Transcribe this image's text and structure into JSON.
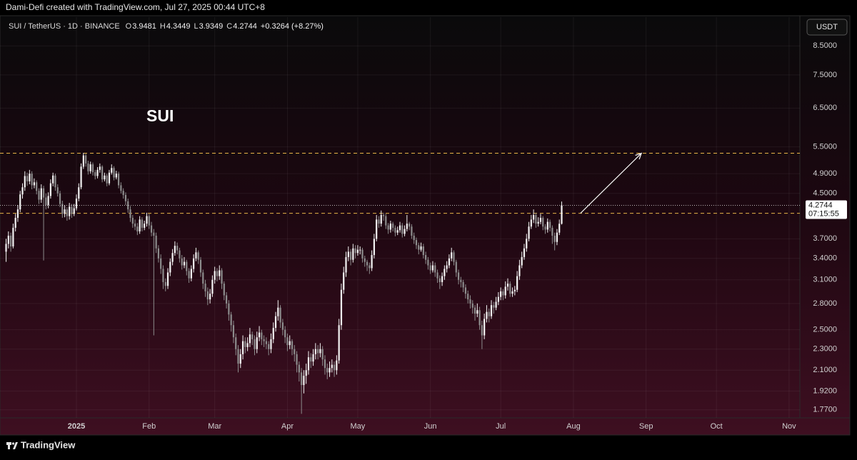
{
  "header": {
    "credit": "Dami-Defi created with TradingView.com, Jul 27, 2025 00:44 UTC+8"
  },
  "footer": {
    "brand": "TradingView"
  },
  "chart_data": {
    "type": "candlestick",
    "symbol": "SUI / TetherUS · 1D · BINANCE",
    "ohlc_labels": [
      "O",
      "H",
      "L",
      "C"
    ],
    "change": "+0.3264 (+8.27%)",
    "currency": "USDT",
    "countdown": "07:15:55",
    "annotation": "SUI",
    "up_color": "#f2f2f2",
    "down_color": "#8c8c8c",
    "level_color": "#e8b548",
    "arrow_color": "#ffffff",
    "log_scale": true,
    "grid": true,
    "ylim": [
      1.71,
      9.62
    ],
    "yticks": [
      {
        "value": 1.77,
        "label": "1.7700"
      },
      {
        "value": 1.92,
        "label": "1.9200"
      },
      {
        "value": 2.1,
        "label": "2.1000"
      },
      {
        "value": 2.3,
        "label": "2.3000"
      },
      {
        "value": 2.5,
        "label": "2.5000"
      },
      {
        "value": 2.8,
        "label": "2.8000"
      },
      {
        "value": 3.1,
        "label": "3.1000"
      },
      {
        "value": 3.4,
        "label": "3.4000"
      },
      {
        "value": 3.7,
        "label": "3.7000"
      },
      {
        "value": 4.5,
        "label": "4.5000"
      },
      {
        "value": 4.9,
        "label": "4.9000"
      },
      {
        "value": 5.5,
        "label": "5.5000"
      },
      {
        "value": 6.5,
        "label": "6.5000"
      },
      {
        "value": 7.5,
        "label": "7.5000"
      },
      {
        "value": 8.5,
        "label": "8.5000"
      }
    ],
    "xlim": [
      -2.6,
      338.6
    ],
    "xticks": [
      {
        "value": 30,
        "label": "2025"
      },
      {
        "value": 61,
        "label": "Feb"
      },
      {
        "value": 89,
        "label": "Mar"
      },
      {
        "value": 120,
        "label": "Apr"
      },
      {
        "value": 150,
        "label": "May"
      },
      {
        "value": 181,
        "label": "Jun"
      },
      {
        "value": 211,
        "label": "Jul"
      },
      {
        "value": 242,
        "label": "Aug"
      },
      {
        "value": 273,
        "label": "Sep"
      },
      {
        "value": 303,
        "label": "Oct"
      },
      {
        "value": 334,
        "label": "Nov"
      }
    ],
    "levels": [
      5.35,
      4.13
    ],
    "arrow": {
      "from": [
        245,
        4.13
      ],
      "to": [
        271,
        5.35
      ]
    },
    "candles": [
      [
        3.5,
        3.7,
        3.35,
        3.62
      ],
      [
        3.62,
        3.82,
        3.55,
        3.75
      ],
      [
        3.75,
        3.8,
        3.5,
        3.58
      ],
      [
        3.58,
        3.95,
        3.55,
        3.88
      ],
      [
        3.88,
        4.12,
        3.82,
        4.05
      ],
      [
        4.05,
        4.28,
        3.98,
        4.2
      ],
      [
        4.2,
        4.55,
        4.15,
        4.48
      ],
      [
        4.48,
        4.7,
        4.4,
        4.62
      ],
      [
        4.62,
        4.95,
        4.55,
        4.85
      ],
      [
        4.85,
        4.92,
        4.65,
        4.74
      ],
      [
        4.74,
        4.98,
        4.68,
        4.9
      ],
      [
        4.9,
        4.95,
        4.58,
        4.66
      ],
      [
        4.66,
        4.8,
        4.6,
        4.72
      ],
      [
        4.72,
        4.76,
        4.48,
        4.55
      ],
      [
        4.55,
        4.6,
        4.3,
        4.38
      ],
      [
        4.38,
        4.68,
        4.32,
        4.6
      ],
      [
        4.6,
        4.65,
        3.37,
        4.42
      ],
      [
        4.42,
        4.5,
        4.2,
        4.28
      ],
      [
        4.28,
        4.52,
        4.22,
        4.45
      ],
      [
        4.45,
        4.78,
        4.4,
        4.7
      ],
      [
        4.7,
        4.92,
        4.64,
        4.86
      ],
      [
        4.86,
        4.9,
        4.55,
        4.62
      ],
      [
        4.62,
        4.68,
        4.44,
        4.5
      ],
      [
        4.5,
        4.55,
        4.24,
        4.3
      ],
      [
        4.3,
        4.36,
        4.05,
        4.12
      ],
      [
        4.12,
        4.28,
        4.06,
        4.2
      ],
      [
        4.2,
        4.24,
        4.0,
        4.08
      ],
      [
        4.08,
        4.32,
        4.02,
        4.25
      ],
      [
        4.25,
        4.3,
        4.05,
        4.12
      ],
      [
        4.12,
        4.3,
        4.08,
        4.22
      ],
      [
        4.22,
        4.48,
        4.18,
        4.4
      ],
      [
        4.4,
        4.7,
        4.35,
        4.62
      ],
      [
        4.62,
        5.12,
        4.58,
        5.05
      ],
      [
        5.05,
        5.36,
        5.0,
        5.3
      ],
      [
        5.3,
        5.34,
        5.05,
        5.12
      ],
      [
        5.12,
        5.18,
        4.88,
        4.95
      ],
      [
        4.95,
        5.16,
        4.9,
        5.1
      ],
      [
        5.1,
        5.14,
        4.86,
        4.93
      ],
      [
        4.93,
        4.98,
        4.78,
        4.85
      ],
      [
        4.85,
        5.04,
        4.8,
        4.98
      ],
      [
        4.98,
        5.12,
        4.92,
        5.05
      ],
      [
        5.05,
        5.08,
        4.72,
        4.78
      ],
      [
        4.78,
        4.92,
        4.74,
        4.86
      ],
      [
        4.86,
        4.9,
        4.64,
        4.7
      ],
      [
        4.7,
        4.98,
        4.66,
        4.92
      ],
      [
        4.92,
        5.1,
        4.88,
        5.02
      ],
      [
        5.02,
        5.06,
        4.76,
        4.82
      ],
      [
        4.82,
        4.96,
        4.78,
        4.9
      ],
      [
        4.9,
        4.94,
        4.6,
        4.66
      ],
      [
        4.66,
        4.72,
        4.5,
        4.55
      ],
      [
        4.55,
        4.6,
        4.4,
        4.47
      ],
      [
        4.47,
        4.52,
        4.28,
        4.35
      ],
      [
        4.35,
        4.4,
        4.14,
        4.2
      ],
      [
        4.2,
        4.26,
        3.98,
        4.05
      ],
      [
        4.05,
        4.1,
        3.88,
        3.95
      ],
      [
        3.95,
        4.02,
        3.84,
        3.9
      ],
      [
        3.9,
        3.96,
        3.76,
        3.82
      ],
      [
        3.82,
        4.08,
        3.78,
        4.02
      ],
      [
        4.02,
        4.06,
        3.82,
        3.88
      ],
      [
        3.88,
        4.0,
        3.84,
        3.95
      ],
      [
        3.95,
        4.14,
        3.9,
        4.08
      ],
      [
        4.08,
        4.12,
        3.86,
        3.92
      ],
      [
        3.92,
        3.98,
        3.74,
        3.8
      ],
      [
        3.8,
        3.86,
        2.44,
        3.75
      ],
      [
        3.75,
        3.8,
        3.48,
        3.55
      ],
      [
        3.55,
        3.6,
        3.34,
        3.4
      ],
      [
        3.4,
        3.46,
        3.18,
        3.25
      ],
      [
        3.25,
        3.3,
        2.98,
        3.07
      ],
      [
        3.07,
        3.12,
        2.95,
        3.02
      ],
      [
        3.02,
        3.26,
        2.98,
        3.2
      ],
      [
        3.2,
        3.4,
        3.15,
        3.35
      ],
      [
        3.35,
        3.54,
        3.3,
        3.48
      ],
      [
        3.48,
        3.66,
        3.44,
        3.59
      ],
      [
        3.59,
        3.64,
        3.46,
        3.52
      ],
      [
        3.52,
        3.56,
        3.34,
        3.4
      ],
      [
        3.4,
        3.45,
        3.24,
        3.3
      ],
      [
        3.3,
        3.42,
        3.26,
        3.35
      ],
      [
        3.35,
        3.38,
        3.16,
        3.22
      ],
      [
        3.22,
        3.26,
        3.06,
        3.12
      ],
      [
        3.12,
        3.3,
        3.08,
        3.25
      ],
      [
        3.25,
        3.46,
        3.2,
        3.4
      ],
      [
        3.4,
        3.56,
        3.36,
        3.49
      ],
      [
        3.49,
        3.52,
        3.32,
        3.38
      ],
      [
        3.38,
        3.42,
        3.14,
        3.2
      ],
      [
        3.2,
        3.24,
        2.98,
        3.05
      ],
      [
        3.05,
        3.1,
        2.88,
        2.95
      ],
      [
        2.95,
        3.0,
        2.78,
        2.85
      ],
      [
        2.85,
        2.98,
        2.8,
        2.92
      ],
      [
        2.92,
        3.16,
        2.88,
        3.1
      ],
      [
        3.1,
        3.28,
        3.05,
        3.22
      ],
      [
        3.22,
        3.26,
        3.08,
        3.15
      ],
      [
        3.15,
        3.3,
        3.1,
        3.23
      ],
      [
        3.23,
        3.26,
        2.98,
        3.05
      ],
      [
        3.05,
        3.08,
        2.84,
        2.9
      ],
      [
        2.9,
        2.94,
        2.74,
        2.8
      ],
      [
        2.8,
        2.84,
        2.6,
        2.67
      ],
      [
        2.67,
        2.7,
        2.48,
        2.55
      ],
      [
        2.55,
        2.6,
        2.36,
        2.42
      ],
      [
        2.42,
        2.46,
        2.24,
        2.3
      ],
      [
        2.3,
        2.34,
        2.08,
        2.16
      ],
      [
        2.16,
        2.3,
        2.12,
        2.25
      ],
      [
        2.25,
        2.44,
        2.2,
        2.38
      ],
      [
        2.38,
        2.42,
        2.26,
        2.32
      ],
      [
        2.32,
        2.42,
        2.28,
        2.36
      ],
      [
        2.36,
        2.52,
        2.32,
        2.45
      ],
      [
        2.45,
        2.48,
        2.34,
        2.4
      ],
      [
        2.4,
        2.44,
        2.24,
        2.3
      ],
      [
        2.3,
        2.48,
        2.26,
        2.42
      ],
      [
        2.42,
        2.54,
        2.38,
        2.47
      ],
      [
        2.47,
        2.5,
        2.34,
        2.4
      ],
      [
        2.4,
        2.44,
        2.32,
        2.38
      ],
      [
        2.38,
        2.42,
        2.3,
        2.35
      ],
      [
        2.35,
        2.38,
        2.24,
        2.3
      ],
      [
        2.3,
        2.46,
        2.26,
        2.4
      ],
      [
        2.4,
        2.58,
        2.36,
        2.52
      ],
      [
        2.52,
        2.7,
        2.48,
        2.65
      ],
      [
        2.65,
        2.84,
        2.6,
        2.75
      ],
      [
        2.75,
        2.78,
        2.52,
        2.58
      ],
      [
        2.58,
        2.62,
        2.44,
        2.5
      ],
      [
        2.5,
        2.54,
        2.36,
        2.42
      ],
      [
        2.42,
        2.46,
        2.28,
        2.34
      ],
      [
        2.34,
        2.44,
        2.3,
        2.38
      ],
      [
        2.38,
        2.4,
        2.24,
        2.3
      ],
      [
        2.3,
        2.34,
        2.18,
        2.25
      ],
      [
        2.25,
        2.28,
        2.08,
        2.15
      ],
      [
        2.15,
        2.18,
        2.0,
        2.08
      ],
      [
        2.08,
        2.12,
        1.74,
        1.97
      ],
      [
        1.97,
        2.1,
        1.9,
        2.05
      ],
      [
        2.05,
        2.16,
        1.98,
        2.1
      ],
      [
        2.1,
        2.28,
        2.06,
        2.22
      ],
      [
        2.22,
        2.26,
        2.12,
        2.18
      ],
      [
        2.18,
        2.3,
        2.14,
        2.25
      ],
      [
        2.25,
        2.36,
        2.2,
        2.3
      ],
      [
        2.3,
        2.34,
        2.2,
        2.26
      ],
      [
        2.26,
        2.36,
        2.22,
        2.3
      ],
      [
        2.3,
        2.33,
        2.14,
        2.2
      ],
      [
        2.2,
        2.24,
        2.06,
        2.12
      ],
      [
        2.12,
        2.16,
        2.02,
        2.08
      ],
      [
        2.08,
        2.18,
        2.04,
        2.12
      ],
      [
        2.12,
        2.2,
        2.08,
        2.15
      ],
      [
        2.15,
        2.18,
        2.04,
        2.1
      ],
      [
        2.1,
        2.24,
        2.06,
        2.19
      ],
      [
        2.19,
        2.62,
        2.16,
        2.55
      ],
      [
        2.55,
        3.05,
        2.5,
        2.97
      ],
      [
        2.97,
        3.28,
        2.92,
        3.2
      ],
      [
        3.2,
        3.5,
        3.14,
        3.42
      ],
      [
        3.42,
        3.58,
        3.36,
        3.5
      ],
      [
        3.5,
        3.54,
        3.3,
        3.38
      ],
      [
        3.38,
        3.62,
        3.34,
        3.55
      ],
      [
        3.55,
        3.6,
        3.4,
        3.48
      ],
      [
        3.48,
        3.6,
        3.44,
        3.53
      ],
      [
        3.53,
        3.58,
        3.46,
        3.53
      ],
      [
        3.53,
        3.56,
        3.34,
        3.4
      ],
      [
        3.4,
        3.44,
        3.28,
        3.35
      ],
      [
        3.35,
        3.38,
        3.22,
        3.3
      ],
      [
        3.3,
        3.34,
        3.18,
        3.26
      ],
      [
        3.26,
        3.52,
        3.22,
        3.45
      ],
      [
        3.45,
        3.78,
        3.4,
        3.7
      ],
      [
        3.7,
        4.1,
        3.66,
        4.02
      ],
      [
        4.02,
        4.08,
        3.88,
        3.95
      ],
      [
        3.95,
        4.18,
        3.9,
        4.1
      ],
      [
        4.1,
        4.14,
        4.0,
        4.08
      ],
      [
        4.08,
        4.12,
        3.86,
        3.92
      ],
      [
        3.92,
        3.96,
        3.78,
        3.85
      ],
      [
        3.85,
        4.0,
        3.8,
        3.95
      ],
      [
        3.95,
        3.98,
        3.82,
        3.88
      ],
      [
        3.88,
        3.92,
        3.74,
        3.8
      ],
      [
        3.8,
        3.9,
        3.76,
        3.84
      ],
      [
        3.84,
        3.98,
        3.8,
        3.92
      ],
      [
        3.92,
        3.96,
        3.72,
        3.78
      ],
      [
        3.78,
        3.92,
        3.74,
        3.86
      ],
      [
        3.86,
        4.1,
        3.82,
        3.95
      ],
      [
        3.95,
        3.98,
        3.84,
        3.9
      ],
      [
        3.9,
        3.94,
        3.7,
        3.75
      ],
      [
        3.75,
        3.8,
        3.62,
        3.68
      ],
      [
        3.68,
        3.72,
        3.54,
        3.6
      ],
      [
        3.6,
        3.64,
        3.46,
        3.53
      ],
      [
        3.53,
        3.64,
        3.5,
        3.58
      ],
      [
        3.58,
        3.62,
        3.4,
        3.45
      ],
      [
        3.45,
        3.5,
        3.32,
        3.38
      ],
      [
        3.38,
        3.42,
        3.24,
        3.3
      ],
      [
        3.3,
        3.34,
        3.18,
        3.23
      ],
      [
        3.23,
        3.36,
        3.2,
        3.3
      ],
      [
        3.3,
        3.34,
        3.14,
        3.2
      ],
      [
        3.2,
        3.24,
        3.06,
        3.12
      ],
      [
        3.12,
        3.16,
        2.98,
        3.07
      ],
      [
        3.07,
        3.2,
        3.02,
        3.15
      ],
      [
        3.15,
        3.3,
        3.1,
        3.25
      ],
      [
        3.25,
        3.36,
        3.2,
        3.3
      ],
      [
        3.3,
        3.46,
        3.26,
        3.4
      ],
      [
        3.4,
        3.56,
        3.36,
        3.49
      ],
      [
        3.49,
        3.52,
        3.3,
        3.35
      ],
      [
        3.35,
        3.38,
        3.14,
        3.2
      ],
      [
        3.2,
        3.24,
        3.04,
        3.1
      ],
      [
        3.1,
        3.14,
        3.0,
        3.07
      ],
      [
        3.07,
        3.1,
        2.94,
        3.0
      ],
      [
        3.0,
        3.04,
        2.86,
        2.92
      ],
      [
        2.92,
        2.96,
        2.8,
        2.85
      ],
      [
        2.85,
        2.9,
        2.74,
        2.8
      ],
      [
        2.8,
        2.84,
        2.68,
        2.75
      ],
      [
        2.75,
        2.78,
        2.6,
        2.68
      ],
      [
        2.68,
        2.8,
        2.64,
        2.72
      ],
      [
        2.72,
        2.76,
        2.5,
        2.55
      ],
      [
        2.55,
        2.6,
        2.3,
        2.44
      ],
      [
        2.44,
        2.68,
        2.4,
        2.62
      ],
      [
        2.62,
        2.78,
        2.58,
        2.7
      ],
      [
        2.7,
        2.74,
        2.58,
        2.65
      ],
      [
        2.65,
        2.84,
        2.62,
        2.78
      ],
      [
        2.78,
        2.82,
        2.68,
        2.75
      ],
      [
        2.75,
        2.88,
        2.72,
        2.82
      ],
      [
        2.82,
        2.94,
        2.78,
        2.88
      ],
      [
        2.88,
        3.0,
        2.84,
        2.95
      ],
      [
        2.95,
        2.98,
        2.84,
        2.9
      ],
      [
        2.9,
        3.08,
        2.86,
        3.01
      ],
      [
        3.01,
        3.12,
        2.96,
        3.05
      ],
      [
        3.05,
        3.08,
        2.88,
        2.92
      ],
      [
        2.92,
        3.0,
        2.88,
        2.95
      ],
      [
        2.95,
        3.02,
        2.9,
        2.97
      ],
      [
        2.97,
        3.22,
        2.94,
        3.15
      ],
      [
        3.15,
        3.38,
        3.1,
        3.3
      ],
      [
        3.3,
        3.5,
        3.26,
        3.42
      ],
      [
        3.42,
        3.62,
        3.38,
        3.55
      ],
      [
        3.55,
        3.78,
        3.5,
        3.7
      ],
      [
        3.7,
        3.98,
        3.66,
        3.9
      ],
      [
        3.9,
        4.1,
        3.86,
        4.02
      ],
      [
        4.02,
        4.2,
        3.96,
        4.1
      ],
      [
        4.1,
        4.14,
        3.88,
        3.95
      ],
      [
        3.95,
        4.06,
        3.9,
        3.98
      ],
      [
        3.98,
        4.12,
        3.94,
        4.05
      ],
      [
        4.05,
        4.08,
        3.84,
        3.9
      ],
      [
        3.9,
        3.94,
        3.78,
        3.85
      ],
      [
        3.85,
        4.04,
        3.8,
        3.98
      ],
      [
        3.98,
        4.02,
        3.82,
        3.88
      ],
      [
        3.88,
        3.92,
        3.62,
        3.75
      ],
      [
        3.75,
        3.8,
        3.52,
        3.65
      ],
      [
        3.65,
        3.86,
        3.6,
        3.8
      ],
      [
        3.8,
        4.02,
        3.76,
        3.9481
      ],
      [
        3.9481,
        4.3449,
        3.9349,
        4.2744
      ]
    ]
  }
}
